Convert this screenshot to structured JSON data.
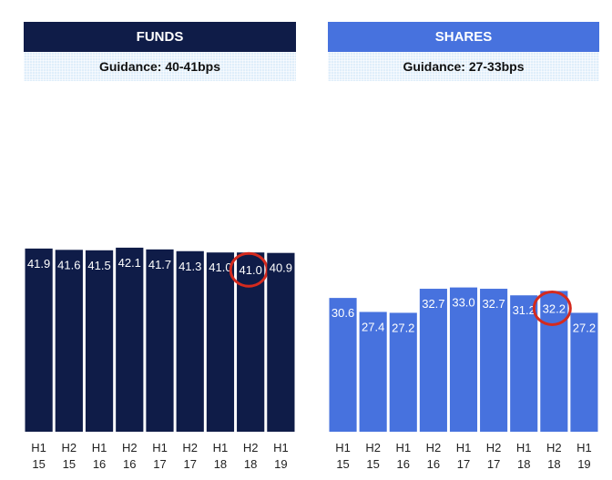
{
  "panels": [
    {
      "title": "FUNDS",
      "guidance": "Guidance: 40-41bps",
      "color": "#0f1c48",
      "highlight_index": 7
    },
    {
      "title": "SHARES",
      "guidance": "Guidance: 27-33bps",
      "color": "#4772de",
      "highlight_index": 7
    }
  ],
  "highlight_color": "#d42a1e",
  "chart_data": [
    {
      "type": "bar",
      "title": "FUNDS",
      "subtitle": "Guidance: 40-41bps",
      "categories": [
        "H1 15",
        "H2 15",
        "H1 16",
        "H2 16",
        "H1 17",
        "H2 17",
        "H1 18",
        "H2 18",
        "H1 19"
      ],
      "values": [
        41.9,
        41.6,
        41.5,
        42.1,
        41.7,
        41.3,
        41.0,
        41.0,
        40.9
      ],
      "value_labels": [
        "41.9",
        "41.6",
        "41.5",
        "42.1",
        "41.7",
        "41.3",
        "41.0",
        "41.0",
        "40.9"
      ],
      "ylim": [
        0,
        65
      ],
      "grid": false,
      "color": "#0f1c48"
    },
    {
      "type": "bar",
      "title": "SHARES",
      "subtitle": "Guidance: 27-33bps",
      "categories": [
        "H1 15",
        "H2 15",
        "H1 16",
        "H2 16",
        "H1 17",
        "H2 17",
        "H1 18",
        "H2 18",
        "H1 19"
      ],
      "values": [
        30.6,
        27.4,
        27.2,
        32.7,
        33.0,
        32.7,
        31.2,
        32.2,
        27.2
      ],
      "value_labels": [
        "30.6",
        "27.4",
        "27.2",
        "32.7",
        "33.0",
        "32.7",
        "31.2",
        "32.2",
        "27.2"
      ],
      "ylim": [
        0,
        65
      ],
      "grid": false,
      "color": "#4772de"
    }
  ]
}
